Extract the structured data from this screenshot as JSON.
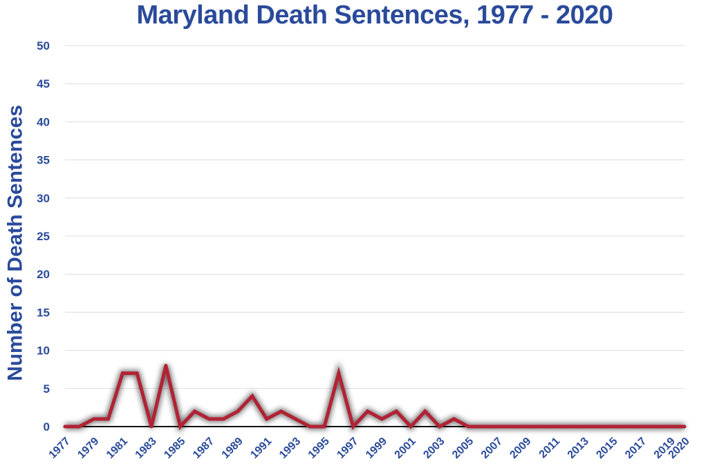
{
  "chart_data": {
    "type": "line",
    "title": "Maryland Death Sentences, 1977 - 2020",
    "xlabel": "",
    "ylabel": "Number of Death Sentences",
    "ylim": [
      0,
      50
    ],
    "yticks": [
      0,
      5,
      10,
      15,
      20,
      25,
      30,
      35,
      40,
      45,
      50
    ],
    "xlim": [
      1977,
      2020
    ],
    "xtick_labels": [
      "1977",
      "1979",
      "1981",
      "1983",
      "1985",
      "1987",
      "1989",
      "1991",
      "1993",
      "1995",
      "1997",
      "1999",
      "2001",
      "2003",
      "2005",
      "2007",
      "2009",
      "2011",
      "2013",
      "2015",
      "2017",
      "2019",
      "2020"
    ],
    "grid": true,
    "legend": "none",
    "colors": {
      "line": "#b22234",
      "text": "#2a4a9a",
      "grid": "#dcdcdc",
      "axis": "#111111"
    },
    "series": [
      {
        "x": [
          1977,
          1978,
          1979,
          1980,
          1981,
          1982,
          1983,
          1984,
          1985,
          1986,
          1987,
          1988,
          1989,
          1990,
          1991,
          1992,
          1993,
          1994,
          1995,
          1996,
          1997,
          1998,
          1999,
          2000,
          2001,
          2002,
          2003,
          2004,
          2005,
          2006,
          2007,
          2008,
          2009,
          2010,
          2011,
          2012,
          2013,
          2014,
          2015,
          2016,
          2017,
          2018,
          2019,
          2020
        ],
        "values": [
          0,
          0,
          1,
          1,
          7,
          7,
          0,
          8,
          0,
          2,
          1,
          1,
          2,
          4,
          1,
          2,
          1,
          0,
          0,
          7,
          0,
          2,
          1,
          2,
          0,
          2,
          0,
          1,
          0,
          0,
          0,
          0,
          0,
          0,
          0,
          0,
          0,
          0,
          0,
          0,
          0,
          0,
          0,
          0
        ]
      }
    ]
  }
}
